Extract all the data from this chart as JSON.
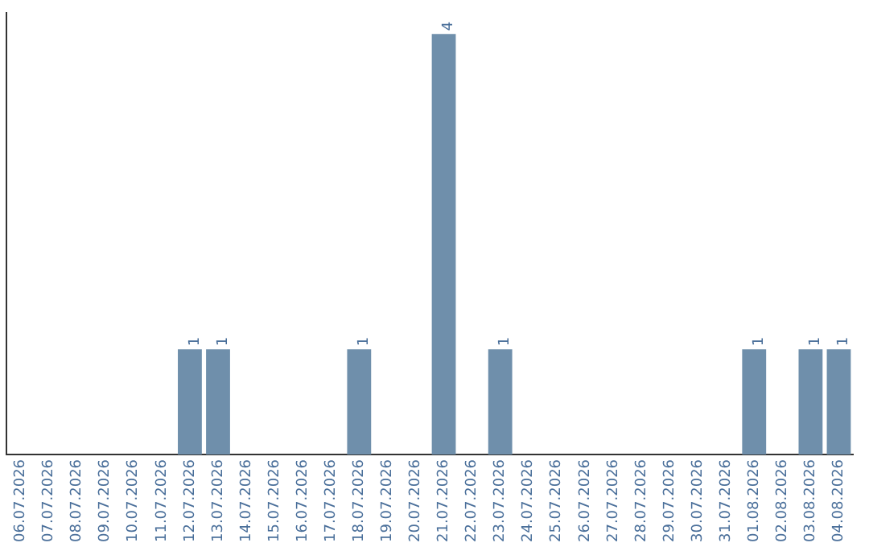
{
  "chart_data": {
    "type": "bar",
    "categories": [
      "06.07.2026",
      "07.07.2026",
      "08.07.2026",
      "09.07.2026",
      "10.07.2026",
      "11.07.2026",
      "12.07.2026",
      "13.07.2026",
      "14.07.2026",
      "15.07.2026",
      "16.07.2026",
      "17.07.2026",
      "18.07.2026",
      "19.07.2026",
      "20.07.2026",
      "21.07.2026",
      "22.07.2026",
      "23.07.2026",
      "24.07.2026",
      "25.07.2026",
      "26.07.2026",
      "27.07.2026",
      "28.07.2026",
      "29.07.2026",
      "30.07.2026",
      "31.07.2026",
      "01.08.2026",
      "02.08.2026",
      "03.08.2026",
      "04.08.2026"
    ],
    "values": [
      0,
      0,
      0,
      0,
      0,
      0,
      1,
      1,
      0,
      0,
      0,
      0,
      1,
      0,
      0,
      4,
      0,
      1,
      0,
      0,
      0,
      0,
      0,
      0,
      0,
      0,
      1,
      0,
      1,
      1
    ],
    "value_labels": [
      null,
      null,
      null,
      null,
      null,
      null,
      "1",
      "1",
      null,
      null,
      null,
      null,
      "1",
      null,
      null,
      "4",
      null,
      "1",
      null,
      null,
      null,
      null,
      null,
      null,
      null,
      null,
      "1",
      null,
      "1",
      "1"
    ],
    "color": "#6f8fab",
    "ylim": [
      0,
      4.2
    ],
    "grid": false,
    "legend": false,
    "tick_labels": "x"
  }
}
